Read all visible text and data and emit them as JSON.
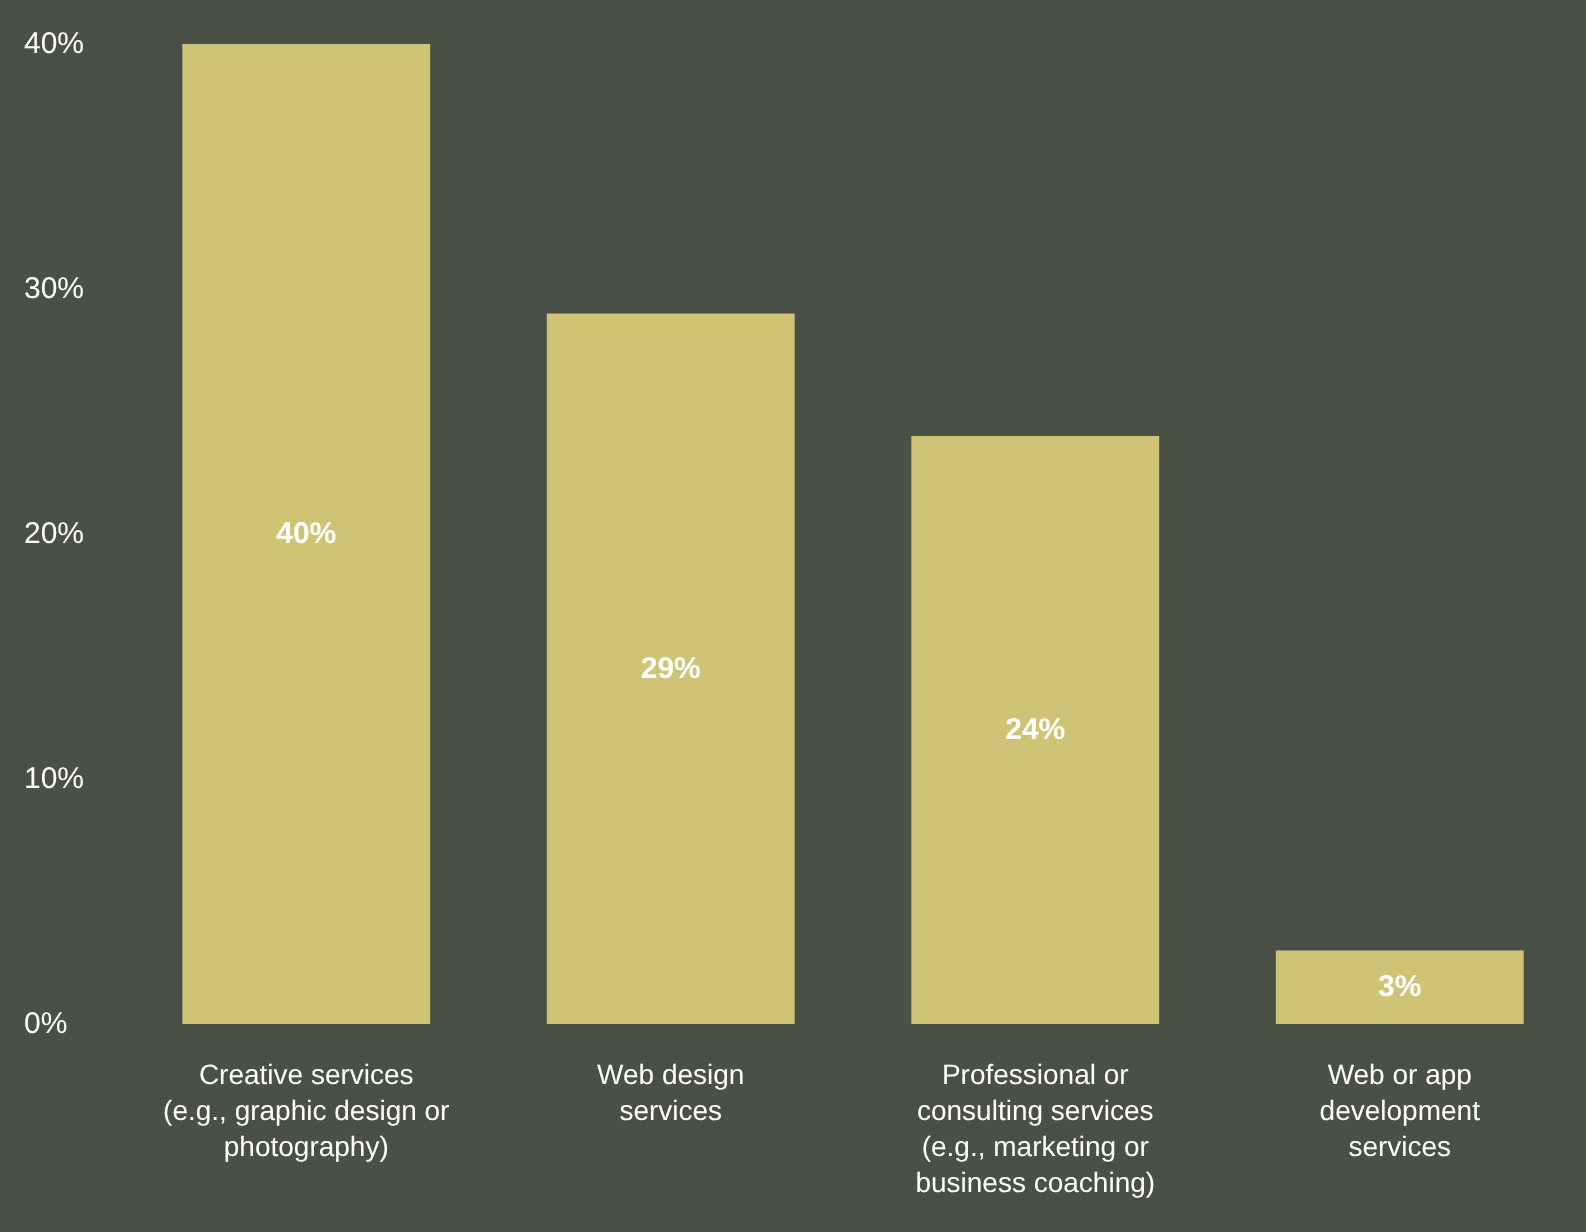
{
  "chart_data": {
    "type": "bar",
    "categories": [
      "Creative services\n(e.g., graphic design or\nphotography)",
      "Web design\nservices",
      "Professional or\nconsulting services\n(e.g., marketing or\nbusiness coaching)",
      "Web or app\ndevelopment\nservices"
    ],
    "values": [
      40,
      29,
      24,
      3
    ],
    "value_labels": [
      "40%",
      "29%",
      "24%",
      "3%"
    ],
    "color": "#cfc376",
    "ylim": [
      0,
      40
    ],
    "yticks": [
      {
        "value": 0,
        "label": "0%"
      },
      {
        "value": 10,
        "label": "10%"
      },
      {
        "value": 20,
        "label": "20%"
      },
      {
        "value": 30,
        "label": "30%"
      },
      {
        "value": 40,
        "label": "40%"
      }
    ],
    "grid": false
  }
}
